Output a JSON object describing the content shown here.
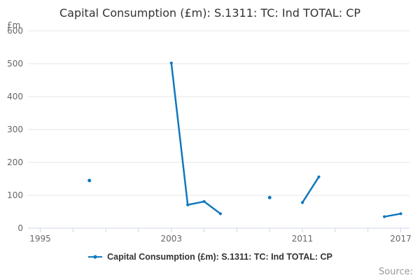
{
  "header": {
    "title": "Capital Consumption (£m): S.1311: TC: Ind TOTAL: CP"
  },
  "chart_data": {
    "type": "line",
    "title": "Capital Consumption (£m): S.1311: TC: Ind TOTAL: CP",
    "xlabel": "",
    "ylabel": "£m",
    "y_unit_label": "£m",
    "xlim": [
      1995,
      2017
    ],
    "ylim": [
      0,
      600
    ],
    "y_ticks": [
      0,
      100,
      200,
      300,
      400,
      500,
      600
    ],
    "x_tick_years": [
      1995,
      1997,
      1999,
      2001,
      2003,
      2005,
      2007,
      2009,
      2011,
      2013,
      2015,
      2017
    ],
    "x_ticks_labeled": [
      1995,
      2003,
      2011,
      2017
    ],
    "grid": "horizontal",
    "legend_position": "bottom-center",
    "series": [
      {
        "name": "Capital Consumption (£m): S.1311: TC: Ind TOTAL: CP",
        "color": "#1178be",
        "points": [
          [
            1998,
            145
          ],
          null,
          [
            2003,
            502
          ],
          [
            2004,
            71
          ],
          [
            2005,
            81
          ],
          [
            2006,
            44
          ],
          null,
          [
            2009,
            93
          ],
          null,
          [
            2011,
            78
          ],
          [
            2012,
            156
          ],
          null,
          [
            2016,
            35
          ],
          [
            2017,
            44
          ]
        ]
      }
    ]
  },
  "footer": {
    "source_label": "Source:"
  },
  "colors": {
    "series_blue": "#1178be",
    "grid_line": "#e6e6e6",
    "axis_line": "#ccd6eb",
    "tick_label": "#666666",
    "title_text": "#333333",
    "source_text": "#999999",
    "background": "#ffffff"
  }
}
